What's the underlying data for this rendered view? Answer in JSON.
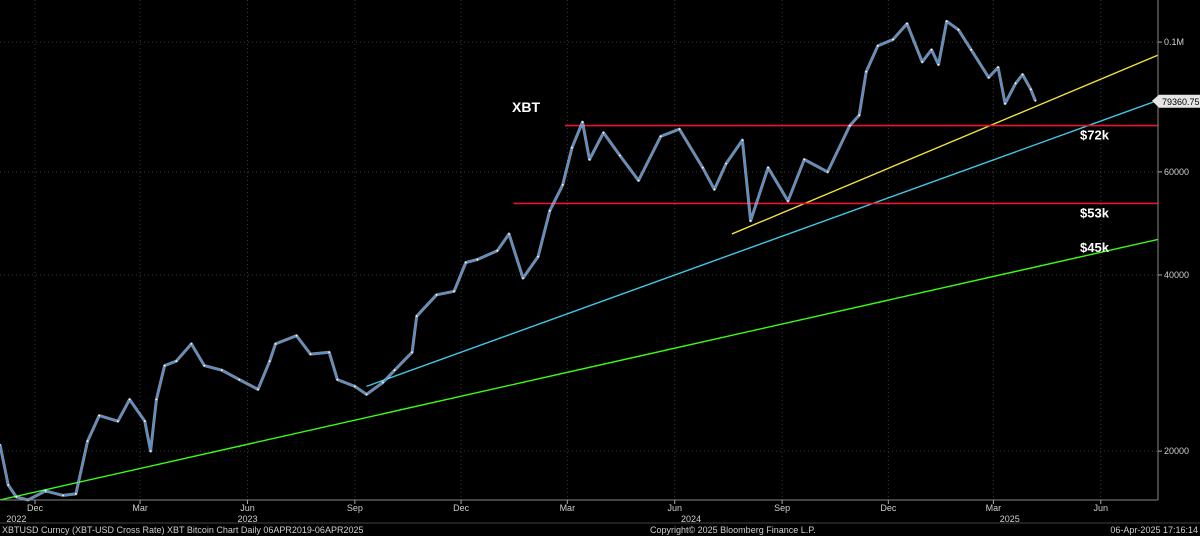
{
  "chart_data": {
    "type": "line",
    "title": "XBT",
    "y_axis_side": "right",
    "y_scale": "log",
    "ylim": [
      16500,
      118000
    ],
    "xlim": [
      "2022-11-01",
      "2025-07-20"
    ],
    "y_ticks": [
      {
        "value": 20000,
        "label": "20000"
      },
      {
        "value": 40000,
        "label": "40000"
      },
      {
        "value": 60000,
        "label": "60000"
      },
      {
        "value": 100000,
        "label": "0.1M"
      }
    ],
    "x_ticks": [
      {
        "date": "2022-12-01",
        "label": "Dec"
      },
      {
        "date": "2023-03-01",
        "label": "Mar"
      },
      {
        "date": "2023-06-01",
        "label": "Jun"
      },
      {
        "date": "2023-09-01",
        "label": "Sep"
      },
      {
        "date": "2023-12-01",
        "label": "Dec"
      },
      {
        "date": "2024-03-01",
        "label": "Mar"
      },
      {
        "date": "2024-06-01",
        "label": "Jun"
      },
      {
        "date": "2024-09-01",
        "label": "Sep"
      },
      {
        "date": "2024-12-01",
        "label": "Dec"
      },
      {
        "date": "2025-03-01",
        "label": "Mar"
      },
      {
        "date": "2025-06-01",
        "label": "Jun"
      }
    ],
    "year_labels": [
      {
        "date": "2022-11-15",
        "label": "2022"
      },
      {
        "date": "2023-06-01",
        "label": "2023"
      },
      {
        "date": "2024-06-15",
        "label": "2024"
      },
      {
        "date": "2025-03-15",
        "label": "2025"
      }
    ],
    "last_price": {
      "value": 79360.75,
      "label": "79360.75"
    },
    "series": [
      {
        "type": "line",
        "color": "#4a90e2",
        "points": [
          [
            "2022-11-01",
            20500
          ],
          [
            "2022-11-08",
            17500
          ],
          [
            "2022-11-15",
            16700
          ],
          [
            "2022-11-25",
            16500
          ],
          [
            "2022-12-10",
            17100
          ],
          [
            "2022-12-25",
            16800
          ],
          [
            "2023-01-05",
            16900
          ],
          [
            "2023-01-15",
            20800
          ],
          [
            "2023-01-25",
            23000
          ],
          [
            "2023-02-10",
            22500
          ],
          [
            "2023-02-20",
            24500
          ],
          [
            "2023-03-05",
            22500
          ],
          [
            "2023-03-10",
            20000
          ],
          [
            "2023-03-15",
            24500
          ],
          [
            "2023-03-22",
            28000
          ],
          [
            "2023-04-01",
            28500
          ],
          [
            "2023-04-14",
            30500
          ],
          [
            "2023-04-25",
            28000
          ],
          [
            "2023-05-10",
            27500
          ],
          [
            "2023-05-25",
            26500
          ],
          [
            "2023-06-10",
            25500
          ],
          [
            "2023-06-20",
            28500
          ],
          [
            "2023-06-25",
            30500
          ],
          [
            "2023-07-13",
            31500
          ],
          [
            "2023-07-25",
            29300
          ],
          [
            "2023-08-10",
            29500
          ],
          [
            "2023-08-17",
            26500
          ],
          [
            "2023-09-01",
            25800
          ],
          [
            "2023-09-11",
            25000
          ],
          [
            "2023-09-25",
            26200
          ],
          [
            "2023-10-05",
            27500
          ],
          [
            "2023-10-20",
            29500
          ],
          [
            "2023-10-24",
            34000
          ],
          [
            "2023-11-10",
            37000
          ],
          [
            "2023-11-25",
            37500
          ],
          [
            "2023-12-05",
            42000
          ],
          [
            "2023-12-15",
            42500
          ],
          [
            "2024-01-01",
            44000
          ],
          [
            "2024-01-11",
            47000
          ],
          [
            "2024-01-23",
            39500
          ],
          [
            "2024-02-05",
            43000
          ],
          [
            "2024-02-15",
            51500
          ],
          [
            "2024-02-26",
            57000
          ],
          [
            "2024-03-05",
            66000
          ],
          [
            "2024-03-14",
            73000
          ],
          [
            "2024-03-20",
            63000
          ],
          [
            "2024-04-01",
            70000
          ],
          [
            "2024-04-15",
            64000
          ],
          [
            "2024-05-01",
            58000
          ],
          [
            "2024-05-20",
            69000
          ],
          [
            "2024-06-05",
            71000
          ],
          [
            "2024-06-25",
            61000
          ],
          [
            "2024-07-05",
            56000
          ],
          [
            "2024-07-15",
            62000
          ],
          [
            "2024-07-29",
            68000
          ],
          [
            "2024-08-05",
            49500
          ],
          [
            "2024-08-20",
            61000
          ],
          [
            "2024-09-06",
            53500
          ],
          [
            "2024-09-20",
            63000
          ],
          [
            "2024-10-10",
            60000
          ],
          [
            "2024-10-29",
            72000
          ],
          [
            "2024-11-06",
            75000
          ],
          [
            "2024-11-12",
            89000
          ],
          [
            "2024-11-22",
            98500
          ],
          [
            "2024-12-05",
            101000
          ],
          [
            "2024-12-17",
            107500
          ],
          [
            "2024-12-30",
            92500
          ],
          [
            "2025-01-07",
            97000
          ],
          [
            "2025-01-13",
            91500
          ],
          [
            "2025-01-20",
            108500
          ],
          [
            "2025-01-30",
            105000
          ],
          [
            "2025-02-10",
            97000
          ],
          [
            "2025-02-25",
            87000
          ],
          [
            "2025-03-05",
            90500
          ],
          [
            "2025-03-11",
            78500
          ],
          [
            "2025-03-20",
            85000
          ],
          [
            "2025-03-26",
            88000
          ],
          [
            "2025-04-02",
            83000
          ],
          [
            "2025-04-06",
            79360
          ]
        ]
      }
    ],
    "trendlines": [
      {
        "color": "#39ff14",
        "from": [
          "2022-11-01",
          16500
        ],
        "to": [
          "2025-07-20",
          46000
        ]
      },
      {
        "color": "#3fc8e6",
        "from": [
          "2023-09-11",
          25800
        ],
        "to": [
          "2025-07-20",
          79500
        ]
      },
      {
        "color": "#f1e13c",
        "from": [
          "2024-07-20",
          47000
        ],
        "to": [
          "2025-07-20",
          95000
        ]
      }
    ],
    "levels": [
      {
        "color": "#e8142b",
        "value": 72000,
        "from": "2024-02-28",
        "label": "$72k"
      },
      {
        "color": "#e8142b",
        "value": 53000,
        "from": "2024-01-15",
        "label": "$53k"
      },
      {
        "color": null,
        "value": 45000,
        "from": null,
        "label": "$45k"
      }
    ]
  },
  "footer": {
    "left": "XBTUSD Curncy (XBT-USD Cross Rate) XBT Bitcoin Chart  Daily 06APR2019-06APR2025",
    "center": "Copyright© 2025 Bloomberg Finance L.P.",
    "right": "06-Apr-2025 17:16:14"
  }
}
